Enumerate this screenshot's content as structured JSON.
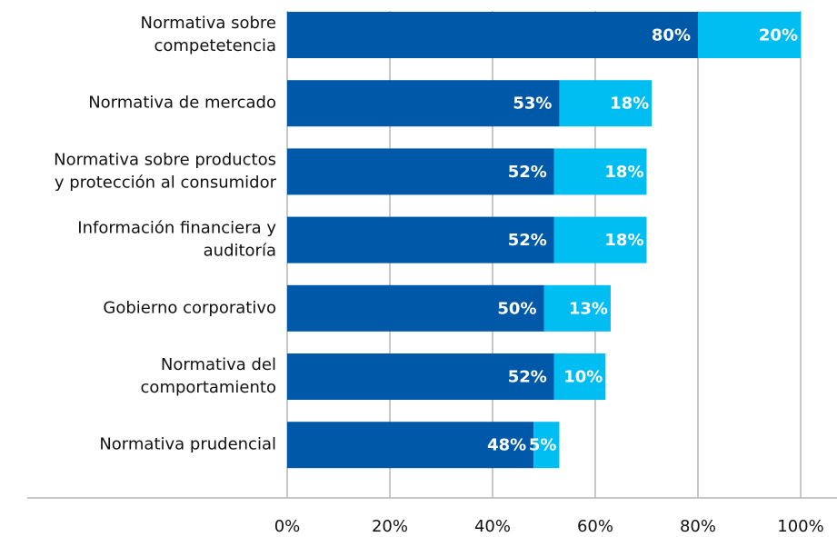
{
  "chart_data": {
    "type": "stacked_barh",
    "categories": [
      [
        "Normativa sobre",
        "competetencia"
      ],
      [
        "Normativa de mercado"
      ],
      [
        "Normativa sobre productos",
        "y protección al consumidor"
      ],
      [
        "Información financiera y",
        "auditoría"
      ],
      [
        "Gobierno corporativo"
      ],
      [
        "Normativa del",
        "comportamiento"
      ],
      [
        "Normativa prudencial"
      ]
    ],
    "series": [
      {
        "color": "#0059a8",
        "values": [
          80,
          53,
          52,
          52,
          50,
          52,
          48
        ],
        "value_labels": [
          "80%",
          "53%",
          "52%",
          "52%",
          "50%",
          "52%",
          "48%"
        ]
      },
      {
        "color": "#00bdf2",
        "values": [
          20,
          18,
          18,
          18,
          13,
          10,
          5
        ],
        "value_labels": [
          "20%",
          "18%",
          "18%",
          "18%",
          "13%",
          "10%",
          "5%"
        ]
      }
    ],
    "xlim": [
      0,
      100
    ],
    "xticks": [
      {
        "value": 0,
        "label": "0%"
      },
      {
        "value": 20,
        "label": "20%"
      },
      {
        "value": 40,
        "label": "40%"
      },
      {
        "value": 60,
        "label": "60%"
      },
      {
        "value": 80,
        "label": "80%"
      },
      {
        "value": 100,
        "label": "100%"
      }
    ],
    "grid": true
  }
}
